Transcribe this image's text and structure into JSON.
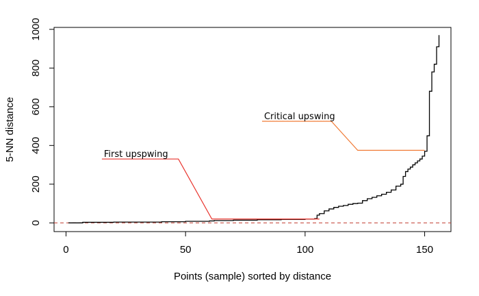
{
  "chart_data": {
    "type": "line",
    "xlabel": "Points (sample) sorted by distance",
    "ylabel": "5-NN distance",
    "xlim": [
      -5,
      161
    ],
    "ylim": [
      -45,
      1010
    ],
    "x_ticks": [
      0,
      50,
      100,
      150
    ],
    "y_ticks": [
      0,
      200,
      400,
      600,
      800,
      1000
    ],
    "grid": false,
    "line_color": "#000000",
    "reference_line": {
      "y": 0,
      "color": "#c0392b",
      "style": "dashed"
    },
    "series": [
      {
        "x": [
          1,
          7,
          20,
          40,
          50,
          60,
          62,
          70,
          80,
          90,
          100,
          104,
          105,
          106,
          108,
          110,
          112,
          114,
          116,
          118,
          120,
          122,
          124,
          126,
          128,
          130,
          132,
          134,
          136,
          138,
          140,
          141,
          142,
          143,
          144,
          145,
          146,
          147,
          148,
          149,
          150,
          151,
          152,
          153,
          154,
          155,
          156
        ],
        "y": [
          0,
          3,
          4,
          6,
          8,
          10,
          12,
          14,
          16,
          18,
          20,
          22,
          40,
          48,
          62,
          72,
          80,
          86,
          90,
          96,
          100,
          102,
          115,
          125,
          132,
          140,
          148,
          158,
          170,
          190,
          200,
          240,
          265,
          278,
          288,
          300,
          310,
          320,
          330,
          345,
          370,
          450,
          680,
          780,
          820,
          910,
          970
        ]
      }
    ],
    "annotations": [
      {
        "text": "First upspwing",
        "color": "#e8332c",
        "points": [
          [
            15,
            330
          ],
          [
            47,
            330
          ],
          [
            61,
            20
          ],
          [
            106,
            20
          ]
        ]
      },
      {
        "text": "Critical upswing",
        "color": "#f07a35",
        "points": [
          [
            82,
            525
          ],
          [
            111,
            525
          ],
          [
            122,
            375
          ],
          [
            150,
            375
          ]
        ]
      }
    ]
  }
}
